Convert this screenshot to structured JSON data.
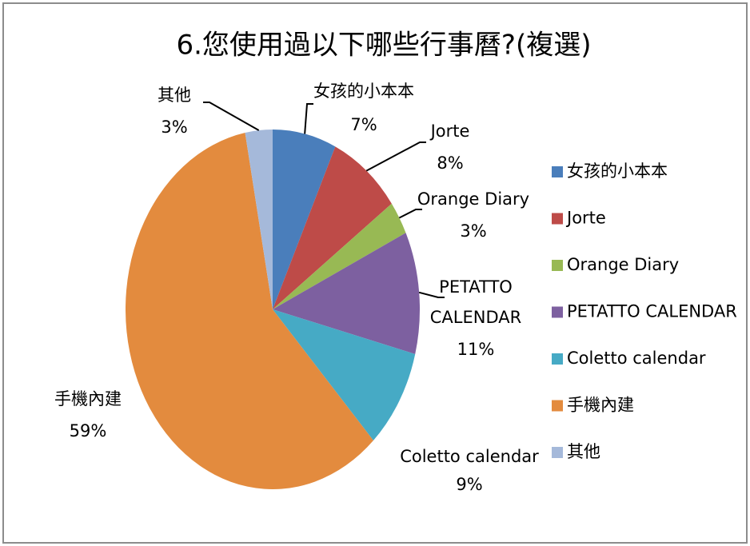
{
  "chart_data": {
    "type": "pie",
    "title": "6.您使用過以下哪些行事曆?(複選)",
    "categories": [
      "女孩的小本本",
      "Jorte",
      "Orange Diary",
      "PETATTO CALENDAR",
      "Coletto calendar",
      "手機內建",
      "其他"
    ],
    "values": [
      7,
      8,
      3,
      11,
      9,
      59,
      3
    ],
    "value_labels": [
      "7%",
      "8%",
      "3%",
      "11%",
      "9%",
      "59%",
      "3%"
    ],
    "colors": [
      "#4a7ebb",
      "#be4b48",
      "#98b954",
      "#7d60a0",
      "#46aac5",
      "#e38b3e",
      "#a5b9da"
    ],
    "legend": "right"
  }
}
